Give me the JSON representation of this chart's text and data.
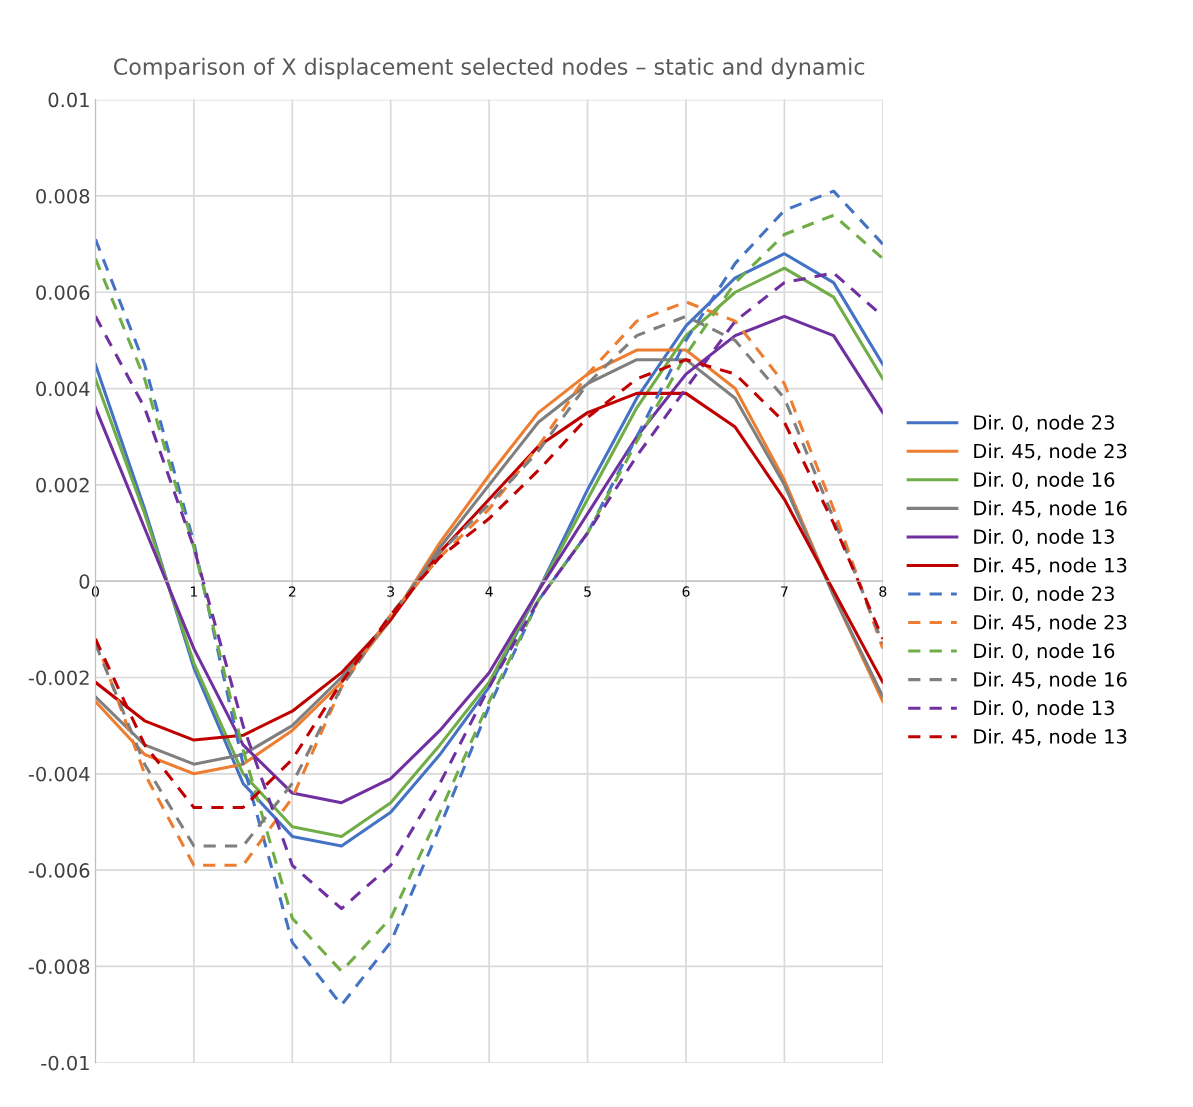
{
  "chart_data": {
    "type": "line",
    "title": "Comparison of X displacement selected nodes – static and dynamic",
    "x": [
      0,
      0.5,
      1,
      1.5,
      2,
      2.5,
      3,
      3.5,
      4,
      4.5,
      5,
      5.5,
      6,
      6.5,
      7,
      7.5,
      8
    ],
    "xlim": [
      0,
      8
    ],
    "xticks": [
      0,
      1,
      2,
      3,
      4,
      5,
      6,
      7,
      8
    ],
    "ylim": [
      -0.01,
      0.01
    ],
    "yticks": [
      -0.01,
      -0.008,
      -0.006,
      -0.004,
      -0.002,
      0,
      0.002,
      0.004,
      0.006,
      0.008,
      0.01
    ],
    "grid": true,
    "legend": "right",
    "marker": "none",
    "series": [
      {
        "name": "Dir. 0, node 23",
        "color": "#4472c4",
        "line_style": "solid",
        "values": [
          0.0045,
          0.0015,
          -0.0018,
          -0.0042,
          -0.0053,
          -0.0055,
          -0.0048,
          -0.0036,
          -0.0022,
          -0.0002,
          0.0019,
          0.0038,
          0.0053,
          0.0063,
          0.0068,
          0.0062,
          0.0045
        ]
      },
      {
        "name": "Dir. 45, node 23",
        "color": "#ed7d31",
        "line_style": "solid",
        "values": [
          -0.0025,
          -0.0036,
          -0.004,
          -0.0038,
          -0.0031,
          -0.0021,
          -0.0008,
          0.0008,
          0.0022,
          0.0035,
          0.0043,
          0.0048,
          0.0048,
          0.004,
          0.0021,
          -0.0003,
          -0.0025
        ]
      },
      {
        "name": "Dir. 0, node 16",
        "color": "#70ad47",
        "line_style": "solid",
        "values": [
          0.0042,
          0.0014,
          -0.0017,
          -0.004,
          -0.0051,
          -0.0053,
          -0.0046,
          -0.0034,
          -0.0021,
          -0.0002,
          0.0017,
          0.0036,
          0.0051,
          0.006,
          0.0065,
          0.0059,
          0.0042
        ]
      },
      {
        "name": "Dir. 45, node 16",
        "color": "#7f7f7f",
        "line_style": "solid",
        "values": [
          -0.0024,
          -0.0034,
          -0.0038,
          -0.0036,
          -0.003,
          -0.002,
          -0.0008,
          0.0007,
          0.002,
          0.0033,
          0.0041,
          0.0046,
          0.0046,
          0.0038,
          0.002,
          -0.0003,
          -0.0024
        ]
      },
      {
        "name": "Dir. 0, node 13",
        "color": "#7030a0",
        "line_style": "solid",
        "values": [
          0.0036,
          0.0011,
          -0.0014,
          -0.0034,
          -0.0044,
          -0.0046,
          -0.0041,
          -0.0031,
          -0.0019,
          -0.0002,
          0.0014,
          0.003,
          0.0043,
          0.0051,
          0.0055,
          0.0051,
          0.0035
        ]
      },
      {
        "name": "Dir. 45, node 13",
        "color": "#c00000",
        "line_style": "solid",
        "values": [
          -0.0021,
          -0.0029,
          -0.0033,
          -0.0032,
          -0.0027,
          -0.0019,
          -0.0008,
          0.0006,
          0.0017,
          0.0028,
          0.0035,
          0.0039,
          0.0039,
          0.0032,
          0.0017,
          -0.0002,
          -0.0021
        ]
      },
      {
        "name": "Dir. 0, node 23",
        "color": "#4472c4",
        "line_style": "dashed",
        "values": [
          0.0071,
          0.0045,
          0.0008,
          -0.0038,
          -0.0075,
          -0.0088,
          -0.0075,
          -0.0051,
          -0.0026,
          -0.0004,
          0.001,
          0.003,
          0.005,
          0.0066,
          0.0077,
          0.0081,
          0.007
        ]
      },
      {
        "name": "Dir. 45, node 23",
        "color": "#ed7d31",
        "line_style": "dashed",
        "values": [
          -0.0012,
          -0.004,
          -0.0059,
          -0.0059,
          -0.0045,
          -0.0022,
          -0.0007,
          0.0005,
          0.0015,
          0.0028,
          0.0043,
          0.0054,
          0.0058,
          0.0054,
          0.0041,
          0.0015,
          -0.0014
        ]
      },
      {
        "name": "Dir. 0, node 16",
        "color": "#70ad47",
        "line_style": "dashed",
        "values": [
          0.0067,
          0.0042,
          0.0007,
          -0.0035,
          -0.007,
          -0.0081,
          -0.007,
          -0.0048,
          -0.0025,
          -0.0004,
          0.001,
          0.0029,
          0.0047,
          0.0062,
          0.0072,
          0.0076,
          0.0067
        ]
      },
      {
        "name": "Dir. 45, node 16",
        "color": "#7f7f7f",
        "line_style": "dashed",
        "values": [
          -0.0013,
          -0.0038,
          -0.0055,
          -0.0055,
          -0.0042,
          -0.0022,
          -0.0007,
          0.0006,
          0.0016,
          0.0027,
          0.0041,
          0.0051,
          0.0055,
          0.005,
          0.0038,
          0.0013,
          -0.0013
        ]
      },
      {
        "name": "Dir. 0, node 13",
        "color": "#7030a0",
        "line_style": "dashed",
        "values": [
          0.0055,
          0.0036,
          0.0007,
          -0.003,
          -0.0059,
          -0.0068,
          -0.0059,
          -0.0042,
          -0.0022,
          -0.0004,
          0.001,
          0.0026,
          0.004,
          0.0054,
          0.0062,
          0.0064,
          0.0055
        ]
      },
      {
        "name": "Dir. 45, node 13",
        "color": "#c00000",
        "line_style": "dashed",
        "values": [
          -0.0012,
          -0.0034,
          -0.0047,
          -0.0047,
          -0.0037,
          -0.0021,
          -0.0007,
          0.0005,
          0.0013,
          0.0023,
          0.0034,
          0.0042,
          0.0046,
          0.0043,
          0.0033,
          0.0012,
          -0.0012
        ]
      }
    ]
  }
}
